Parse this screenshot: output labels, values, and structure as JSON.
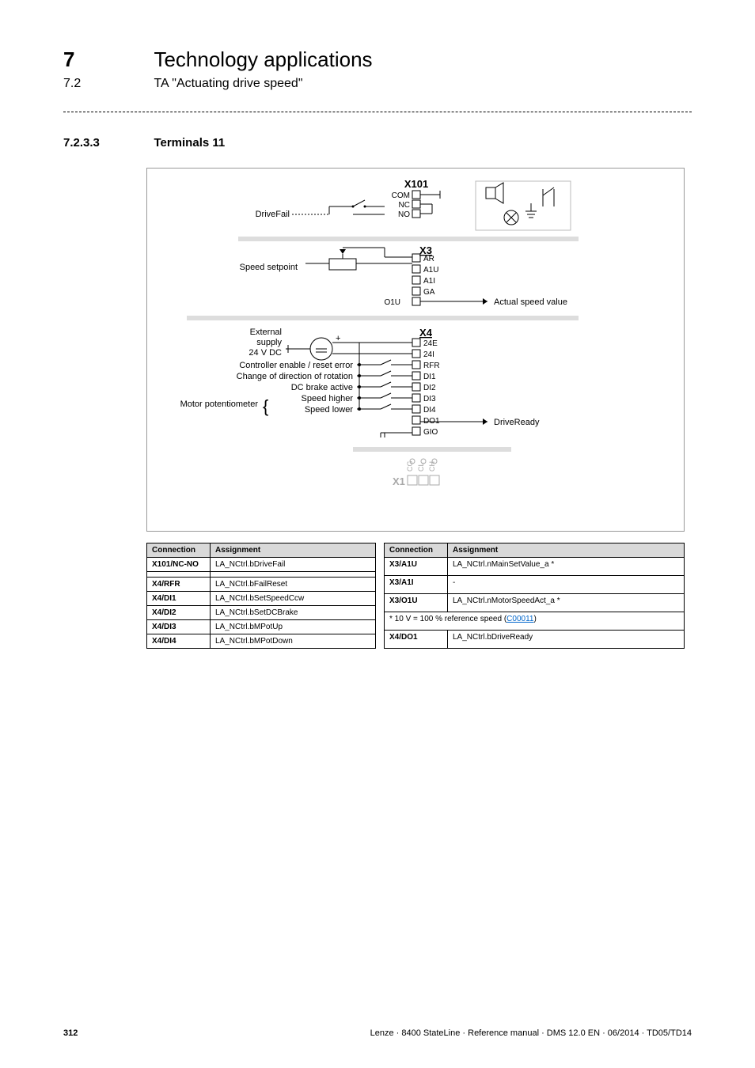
{
  "header": {
    "chapter_num": "7",
    "chapter_title": "Technology applications",
    "section_num": "7.2",
    "section_title": "TA \"Actuating drive speed\""
  },
  "subsection": {
    "num": "7.2.3.3",
    "title": "Terminals 11"
  },
  "diagram": {
    "x101": {
      "label": "X101",
      "pins": [
        "COM",
        "NC",
        "NO"
      ]
    },
    "drivefail": "DriveFail",
    "speed_setpoint": "Speed setpoint",
    "x3": {
      "label": "X3",
      "pins": [
        "AR",
        "A1U",
        "A1I",
        "GA",
        "O1U"
      ]
    },
    "actual_speed": "Actual speed value",
    "ext_supply_line1": "External",
    "ext_supply_line2": "supply",
    "ext_supply_line3": "24 V DC",
    "ctrl_enable": "Controller enable / reset error",
    "dir_change": "Change of direction of rotation",
    "dc_brake": "DC brake active",
    "motor_pot": "Motor potentiometer",
    "speed_higher": "Speed higher",
    "speed_lower": "Speed lower",
    "x4": {
      "label": "X4",
      "pins": [
        "24E",
        "24I",
        "RFR",
        "DI1",
        "DI2",
        "DI3",
        "DI4",
        "DO1",
        "GIO"
      ]
    },
    "drive_ready": "DriveReady",
    "x1": "X1",
    "x1_pins": [
      "CG",
      "CL",
      "CH"
    ]
  },
  "table_left": {
    "headers": [
      "Connection",
      "Assignment"
    ],
    "rows": [
      [
        "X101/NC-NO",
        "LA_NCtrl.bDriveFail"
      ],
      [
        "",
        ""
      ],
      [
        "X4/RFR",
        "LA_NCtrl.bFailReset"
      ],
      [
        "X4/DI1",
        "LA_NCtrl.bSetSpeedCcw"
      ],
      [
        "X4/DI2",
        "LA_NCtrl.bSetDCBrake"
      ],
      [
        "X4/DI3",
        "LA_NCtrl.bMPotUp"
      ],
      [
        "X4/DI4",
        "LA_NCtrl.bMPotDown"
      ]
    ]
  },
  "table_right": {
    "headers": [
      "Connection",
      "Assignment"
    ],
    "rows": [
      [
        "X3/A1U",
        "LA_NCtrl.nMainSetValue_a *"
      ],
      [
        "X3/A1I",
        "-"
      ],
      [
        "X3/O1U",
        "LA_NCtrl.nMotorSpeedAct_a *"
      ],
      [
        "__footnote__",
        "* 10 V = 100 % reference speed (",
        "C00011",
        ")"
      ],
      [
        "X4/DO1",
        "LA_NCtrl.bDriveReady"
      ]
    ]
  },
  "footer": {
    "page": "312",
    "meta": "Lenze · 8400 StateLine · Reference manual · DMS 12.0 EN · 06/2014 · TD05/TD14"
  },
  "colors": {
    "grid_stroke": "#000000",
    "soft_stroke": "#bbbbbb",
    "light_gray": "#a9a9a9",
    "header_bg": "#d9d9d9",
    "link": "#0066cc"
  }
}
